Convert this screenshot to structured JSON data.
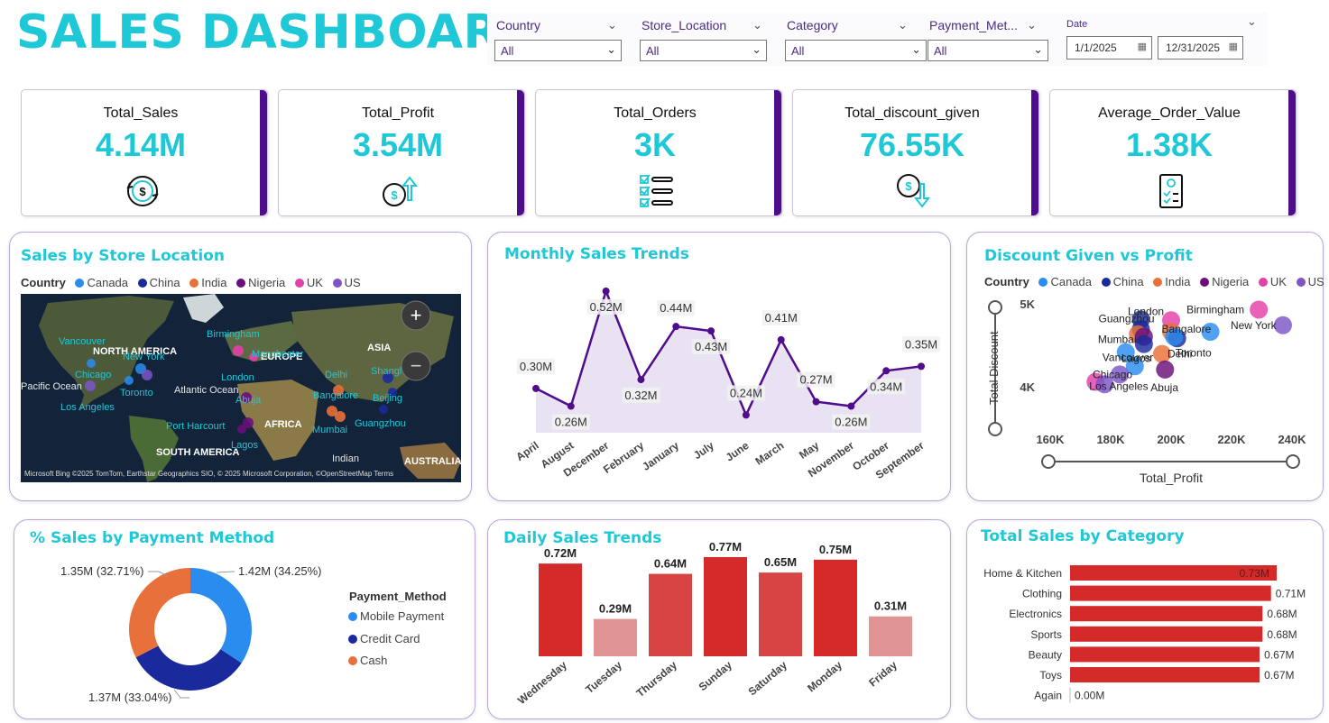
{
  "header": {
    "title": "SALES DASHBOARD"
  },
  "filters": {
    "slicers": [
      {
        "label": "Country",
        "value": "All"
      },
      {
        "label": "Store_Location",
        "value": "All"
      },
      {
        "label": "Category",
        "value": "All"
      },
      {
        "label": "Payment_Met...",
        "value": "All"
      }
    ],
    "date": {
      "label": "Date",
      "start": "1/1/2025",
      "end": "12/31/2025"
    }
  },
  "kpis": [
    {
      "label": "Total_Sales",
      "value": "4.14M",
      "icon": "money-cycle-icon"
    },
    {
      "label": "Total_Profit",
      "value": "3.54M",
      "icon": "profit-up-icon"
    },
    {
      "label": "Total_Orders",
      "value": "3K",
      "icon": "checklist-icon"
    },
    {
      "label": "Total_discount_given",
      "value": "76.55K",
      "icon": "discount-down-icon"
    },
    {
      "label": "Average_Order_Value",
      "value": "1.38K",
      "icon": "receipt-icon"
    }
  ],
  "colors": {
    "accent": "#1ec8d6",
    "kpi_bar": "#4f0d8c",
    "line": "#4f0d8c",
    "bar_strong": "#d42a2a",
    "bar_light": "#e09494",
    "Canada": "#2b8cf0",
    "China": "#1a2a9c",
    "India": "#e8703a",
    "Nigeria": "#6a0f7a",
    "UK": "#e340a8",
    "US": "#7d55c7"
  },
  "map_card": {
    "title": "Sales by Store Location",
    "legend_title": "Country",
    "legend": [
      "Canada",
      "China",
      "India",
      "Nigeria",
      "UK",
      "US"
    ],
    "labels": {
      "continents": [
        "NORTH AMERICA",
        "EUROPE",
        "ASIA",
        "AFRICA",
        "SOUTH AMERICA",
        "AUSTRALIA"
      ],
      "oceans": [
        "Pacific Ocean",
        "Atlantic Ocean",
        "Indian"
      ],
      "cities": [
        "Vancouver",
        "New York",
        "Chicago",
        "Toronto",
        "Los Angeles",
        "Birmingham",
        "Manchester",
        "London",
        "Abuja",
        "Port Harcourt",
        "Lagos",
        "Delhi",
        "Bangalore",
        "Mumbai",
        "Shanghai",
        "Beijing",
        "Guangzhou"
      ]
    },
    "attribution": "Microsoft Bing  ©2025 TomTom, Earthstar Geographics SIO, © 2025 Microsoft Corporation, ©OpenStreetMap  Terms",
    "zoom_in": "+",
    "zoom_out": "−"
  },
  "monthly_card": {
    "title": "Monthly Sales Trends"
  },
  "scatter_card": {
    "title": "Discount Given vs Profit",
    "legend_title": "Country",
    "legend": [
      "Canada",
      "China",
      "India",
      "Nigeria",
      "UK",
      "US"
    ]
  },
  "payment_card": {
    "title": "% Sales by Payment Method",
    "legend_title": "Payment_Method",
    "legend": [
      "Mobile Payment",
      "Credit Card",
      "Cash"
    ]
  },
  "daily_card": {
    "title": "Daily Sales Trends"
  },
  "category_card": {
    "title": "Total Sales by Category"
  },
  "chart_data": [
    {
      "type": "line",
      "title": "Monthly Sales Trends",
      "categories": [
        "April",
        "August",
        "December",
        "February",
        "January",
        "July",
        "June",
        "March",
        "May",
        "November",
        "October",
        "September"
      ],
      "values": [
        0.3,
        0.26,
        0.52,
        0.32,
        0.44,
        0.43,
        0.24,
        0.41,
        0.27,
        0.26,
        0.34,
        0.35
      ],
      "data_labels": [
        "0.30M",
        "0.26M",
        "0.52M",
        "0.32M",
        "0.44M",
        "0.43M",
        "0.24M",
        "0.41M",
        "0.27M",
        "0.26M",
        "0.34M",
        "0.35M"
      ],
      "area_fill": true
    },
    {
      "type": "scatter",
      "title": "Discount Given vs Profit",
      "xlabel": "Total_Profit",
      "ylabel": "Total Discount",
      "xlim": [
        160,
        240
      ],
      "ylim": [
        3.5,
        5.0
      ],
      "x_ticks": [
        "160K",
        "180K",
        "200K",
        "220K",
        "240K"
      ],
      "y_ticks": [
        "5K",
        "4K"
      ],
      "points": [
        {
          "label": "Birmingham",
          "country": "UK",
          "x": 229,
          "y": 4.94
        },
        {
          "label": "New York",
          "country": "US",
          "x": 237,
          "y": 4.75
        },
        {
          "label": "London",
          "country": "UK",
          "x": 200,
          "y": 4.81
        },
        {
          "label": "",
          "country": "China",
          "x": 190,
          "y": 4.82
        },
        {
          "label": "Guangzhou",
          "country": "China",
          "x": 190,
          "y": 4.7
        },
        {
          "label": "",
          "country": "India",
          "x": 189,
          "y": 4.64
        },
        {
          "label": "",
          "country": "India",
          "x": 200,
          "y": 4.67
        },
        {
          "label": "Bangalore",
          "country": "Canada",
          "x": 213,
          "y": 4.67
        },
        {
          "label": "Mumbai",
          "country": "Nigeria",
          "x": 191,
          "y": 4.61
        },
        {
          "label": "Toronto",
          "country": "China",
          "x": 202,
          "y": 4.59
        },
        {
          "label": "",
          "country": "Canada",
          "x": 201,
          "y": 4.61
        },
        {
          "label": "Lagos",
          "country": "China",
          "x": 191,
          "y": 4.52
        },
        {
          "label": "",
          "country": "Canada",
          "x": 185,
          "y": 4.42
        },
        {
          "label": "Delhi",
          "country": "India",
          "x": 197,
          "y": 4.4
        },
        {
          "label": "Vancouver",
          "country": "Canada",
          "x": 188,
          "y": 4.25
        },
        {
          "label": "Abuja",
          "country": "Nigeria",
          "x": 198,
          "y": 4.21
        },
        {
          "label": "Chicago",
          "country": "US",
          "x": 183,
          "y": 4.15
        },
        {
          "label": "",
          "country": "UK",
          "x": 175,
          "y": 4.06
        },
        {
          "label": "Los Angeles",
          "country": "US",
          "x": 178,
          "y": 4.03
        }
      ]
    },
    {
      "type": "pie",
      "title": "% Sales by Payment Method",
      "donut": true,
      "slices": [
        {
          "name": "Mobile Payment",
          "value": 1.42,
          "percent": 34.25,
          "label": "1.42M (34.25%)"
        },
        {
          "name": "Credit Card",
          "value": 1.37,
          "percent": 33.04,
          "label": "1.37M (33.04%)"
        },
        {
          "name": "Cash",
          "value": 1.35,
          "percent": 32.71,
          "label": "1.35M (32.71%)"
        }
      ]
    },
    {
      "type": "bar",
      "title": "Daily Sales Trends",
      "categories": [
        "Wednesday",
        "Tuesday",
        "Thursday",
        "Sunday",
        "Saturday",
        "Monday",
        "Friday"
      ],
      "values": [
        0.72,
        0.29,
        0.64,
        0.77,
        0.65,
        0.75,
        0.31
      ],
      "data_labels": [
        "0.72M",
        "0.29M",
        "0.64M",
        "0.77M",
        "0.65M",
        "0.75M",
        "0.31M"
      ]
    },
    {
      "type": "bar",
      "orientation": "horizontal",
      "title": "Total Sales by Category",
      "categories": [
        "Home & Kitchen",
        "Clothing",
        "Electronics",
        "Sports",
        "Beauty",
        "Toys",
        "Again"
      ],
      "values": [
        0.73,
        0.71,
        0.68,
        0.68,
        0.67,
        0.67,
        0.0
      ],
      "data_labels": [
        "0.73M",
        "0.71M",
        "0.68M",
        "0.68M",
        "0.67M",
        "0.67M",
        "0.00M"
      ]
    }
  ]
}
